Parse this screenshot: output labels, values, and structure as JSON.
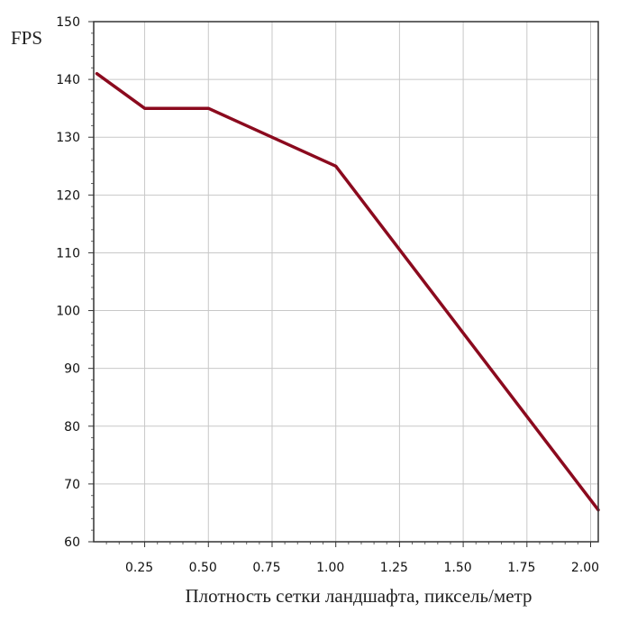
{
  "chart_data": {
    "type": "line",
    "title": "",
    "xlabel": "Плотность сетки ландшафта, пиксель/метр",
    "ylabel": "FPS",
    "xlim": [
      0.05,
      2.03
    ],
    "ylim": [
      60,
      150
    ],
    "x_ticks": [
      0.25,
      0.5,
      0.75,
      1.0,
      1.25,
      1.5,
      1.75,
      2.0
    ],
    "x_tick_labels": [
      "0.25",
      "0.50",
      "0.75",
      "1.00",
      "1.25",
      "1.50",
      "1.75",
      "2.00"
    ],
    "y_ticks": [
      60,
      70,
      80,
      90,
      100,
      110,
      120,
      130,
      140,
      150
    ],
    "y_tick_labels": [
      "60",
      "70",
      "80",
      "90",
      "100",
      "110",
      "120",
      "130",
      "140",
      "150"
    ],
    "grid": true,
    "series": [
      {
        "color": "#8b0a1e",
        "x": [
          0.0625,
          0.25,
          0.5,
          1.0,
          2.03
        ],
        "y": [
          141,
          135,
          135,
          125,
          65.5
        ]
      }
    ]
  }
}
